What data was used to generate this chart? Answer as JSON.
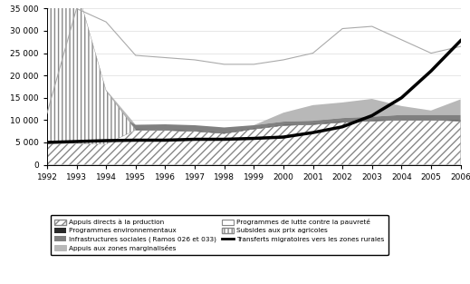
{
  "years": [
    1992,
    1993,
    1994,
    1995,
    1996,
    1997,
    1998,
    1999,
    2000,
    2001,
    2002,
    2003,
    2004,
    2005,
    2006
  ],
  "appuis_directs": [
    4800,
    4800,
    4600,
    7800,
    7700,
    7500,
    7000,
    8000,
    8800,
    9000,
    9500,
    9800,
    10000,
    10000,
    9800
  ],
  "subsides": [
    0,
    0,
    0,
    0,
    0,
    0,
    0,
    0,
    0,
    0,
    0,
    0,
    0,
    0,
    0
  ],
  "subsides_top": [
    30000,
    35000,
    12000,
    0,
    0,
    0,
    0,
    0,
    0,
    0,
    0,
    0,
    0,
    0,
    0
  ],
  "programmes_env": [
    200,
    200,
    200,
    150,
    150,
    150,
    150,
    150,
    150,
    150,
    150,
    150,
    150,
    150,
    150
  ],
  "infra_sociales": [
    6000,
    6500,
    8000,
    1000,
    1200,
    1200,
    1200,
    700,
    700,
    700,
    800,
    800,
    1000,
    1000,
    1200
  ],
  "appuis_marginalisees": [
    0,
    0,
    4000,
    0,
    0,
    0,
    0,
    0,
    2000,
    3500,
    3500,
    4000,
    2000,
    1000,
    3500
  ],
  "programmes_lutte_line": [
    11500,
    35000,
    32000,
    24500,
    24000,
    23500,
    22500,
    22500,
    23500,
    25000,
    30500,
    31000,
    28000,
    25000,
    26500
  ],
  "transferts_migratoires": [
    5000,
    5200,
    5400,
    5500,
    5500,
    5700,
    5700,
    5900,
    6200,
    7200,
    8500,
    11000,
    15000,
    21000,
    27800
  ],
  "ylim": [
    0,
    35000
  ],
  "yticks": [
    0,
    5000,
    10000,
    15000,
    20000,
    25000,
    30000,
    35000
  ],
  "color_appuis_directs_face": "white",
  "color_appuis_directs_edge": "#888888",
  "color_infra_sociales": "#808080",
  "color_programmes_env": "#2a2a2a",
  "color_appuis_marginalisees": "#b8b8b8",
  "color_transferts": "#000000",
  "background": "#ffffff"
}
